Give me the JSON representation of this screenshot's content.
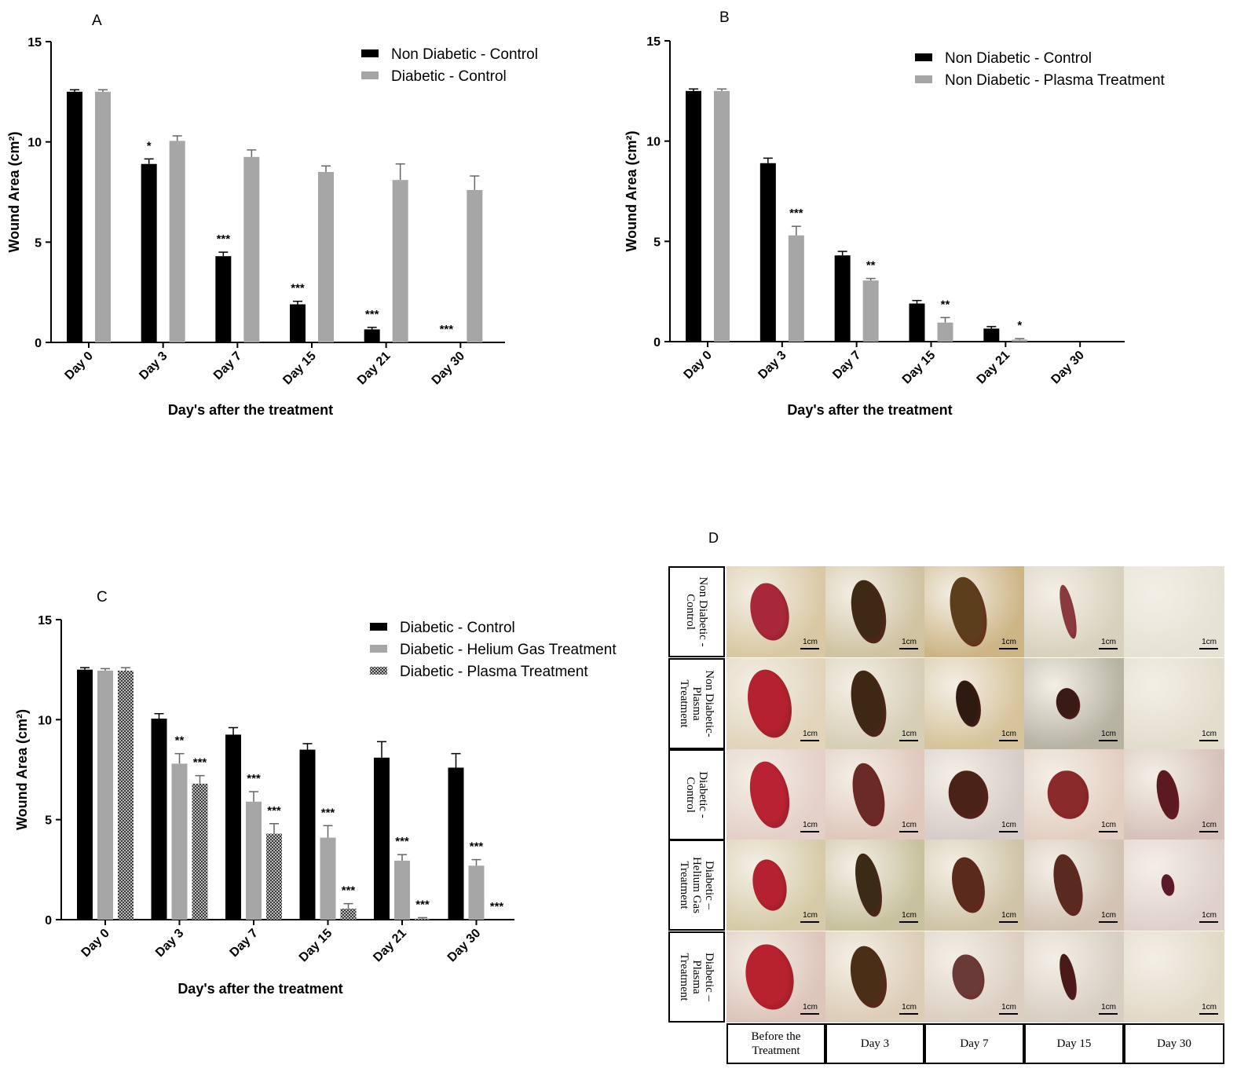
{
  "chart_data": [
    {
      "type": "bar",
      "panel": "A",
      "categories": [
        "Day 0",
        "Day 3",
        "Day 7",
        "Day 15",
        "Day 21",
        "Day 30"
      ],
      "series": [
        {
          "name": "Non Diabetic - Control",
          "color": "#000000",
          "pattern": "solid",
          "values": [
            12.5,
            8.9,
            4.3,
            1.9,
            0.65,
            0
          ],
          "errors": [
            0.1,
            0.25,
            0.2,
            0.15,
            0.1,
            0
          ],
          "significance": [
            "",
            "*",
            "***",
            "***",
            "***",
            "***"
          ]
        },
        {
          "name": "Diabetic - Control",
          "color": "#a6a6a6",
          "pattern": "solid",
          "values": [
            12.5,
            10.05,
            9.25,
            8.5,
            8.1,
            7.6
          ],
          "errors": [
            0.1,
            0.25,
            0.35,
            0.3,
            0.8,
            0.7
          ],
          "significance": [
            "",
            "",
            "",
            "",
            "",
            ""
          ]
        }
      ],
      "xlabel": "Day's after the treatment",
      "ylabel": "Wound Area (cm²)",
      "ylim": [
        0,
        15
      ],
      "yticks": [
        0,
        5,
        10,
        15
      ],
      "legend": "top-right"
    },
    {
      "type": "bar",
      "panel": "B",
      "categories": [
        "Day 0",
        "Day 3",
        "Day 7",
        "Day 15",
        "Day 21",
        "Day 30"
      ],
      "series": [
        {
          "name": "Non Diabetic - Control",
          "color": "#000000",
          "pattern": "solid",
          "values": [
            12.5,
            8.9,
            4.3,
            1.9,
            0.65,
            0
          ],
          "errors": [
            0.1,
            0.25,
            0.2,
            0.15,
            0.1,
            0
          ],
          "significance": [
            "",
            "",
            "",
            "",
            "",
            ""
          ]
        },
        {
          "name": "Non Diabetic - Plasma Treatment",
          "color": "#a6a6a6",
          "pattern": "solid",
          "values": [
            12.5,
            5.3,
            3.05,
            0.95,
            0.1,
            0
          ],
          "errors": [
            0.1,
            0.45,
            0.1,
            0.25,
            0.05,
            0
          ],
          "significance": [
            "",
            "***",
            "**",
            "**",
            "*",
            ""
          ]
        }
      ],
      "xlabel": "Day's after the treatment",
      "ylabel": "Wound Area (cm²)",
      "ylim": [
        0,
        15
      ],
      "yticks": [
        0,
        5,
        10,
        15
      ],
      "legend": "top-right"
    },
    {
      "type": "bar",
      "panel": "C",
      "categories": [
        "Day 0",
        "Day 3",
        "Day 7",
        "Day 15",
        "Day 21",
        "Day 30"
      ],
      "series": [
        {
          "name": "Diabetic - Control",
          "color": "#000000",
          "pattern": "solid",
          "values": [
            12.5,
            10.05,
            9.25,
            8.5,
            8.1,
            7.6
          ],
          "errors": [
            0.1,
            0.25,
            0.35,
            0.3,
            0.8,
            0.7
          ],
          "significance": [
            "",
            "",
            "",
            "",
            "",
            ""
          ]
        },
        {
          "name": "Diabetic - Helium Gas Treatment",
          "color": "#a6a6a6",
          "pattern": "solid",
          "values": [
            12.45,
            7.8,
            5.9,
            4.1,
            2.95,
            2.7
          ],
          "errors": [
            0.1,
            0.5,
            0.5,
            0.6,
            0.3,
            0.3
          ],
          "significance": [
            "",
            "**",
            "***",
            "***",
            "***",
            "***"
          ]
        },
        {
          "name": "Diabetic - Plasma Treatment",
          "color": "#4d4d4d",
          "pattern": "checker",
          "values": [
            12.45,
            6.8,
            4.3,
            0.55,
            0.05,
            0
          ],
          "errors": [
            0.15,
            0.4,
            0.5,
            0.25,
            0.05,
            0
          ],
          "significance": [
            "",
            "***",
            "***",
            "***",
            "***",
            "***"
          ]
        }
      ],
      "xlabel": "Day's after the treatment",
      "ylabel": "Wound Area (cm²)",
      "ylim": [
        0,
        15
      ],
      "yticks": [
        0,
        5,
        10,
        15
      ],
      "legend": "top-right"
    }
  ],
  "panel_letters": {
    "a": "A",
    "b": "B",
    "c": "C",
    "d": "D"
  },
  "photo_grid": {
    "row_labels": [
      "Non Diabetic -\nControl",
      "Non Diabetic-\nPlasma\nTreatment",
      "Diabetic -\nControl",
      "Diabetic –\nHelium Gas\nTreatment",
      "Diabetic –\nPlasma\nTreatment"
    ],
    "column_labels": [
      "Before the\nTreatment",
      "Day 3",
      "Day 7",
      "Day 15",
      "Day 30"
    ],
    "scale_label": "1cm"
  }
}
